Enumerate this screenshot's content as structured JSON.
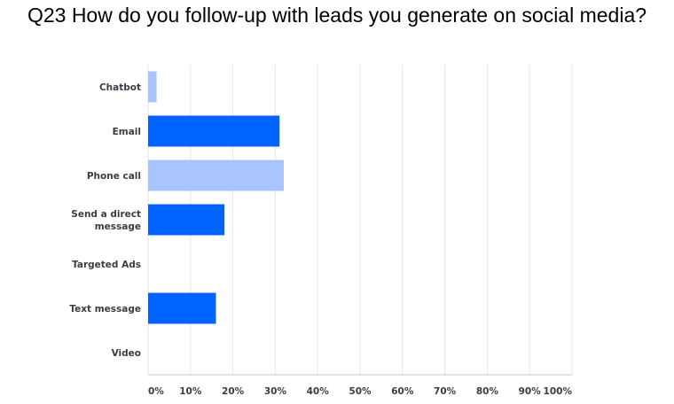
{
  "chart_data": {
    "type": "bar",
    "orientation": "horizontal",
    "title": "Q23 How do you follow-up with leads you generate on social media?",
    "categories": [
      "Chatbot",
      "Email",
      "Phone call",
      "Send a direct message",
      "Targeted Ads",
      "Text message",
      "Video"
    ],
    "category_lines": [
      [
        "Chatbot"
      ],
      [
        "Email"
      ],
      [
        "Phone call"
      ],
      [
        "Send a direct",
        "message"
      ],
      [
        "Targeted Ads"
      ],
      [
        "Text message"
      ],
      [
        "Video"
      ]
    ],
    "values": [
      2,
      31,
      32,
      18,
      0,
      16,
      0
    ],
    "colors": [
      "#a9c5ff",
      "#0062ff",
      "#a9c5ff",
      "#0062ff",
      "#a9c5ff",
      "#0062ff",
      "#a9c5ff"
    ],
    "xlim": [
      0,
      100
    ],
    "x_ticks": [
      "0%",
      "10%",
      "20%",
      "30%",
      "40%",
      "50%",
      "60%",
      "70%",
      "80%",
      "90%",
      "100%"
    ],
    "grid": true
  }
}
